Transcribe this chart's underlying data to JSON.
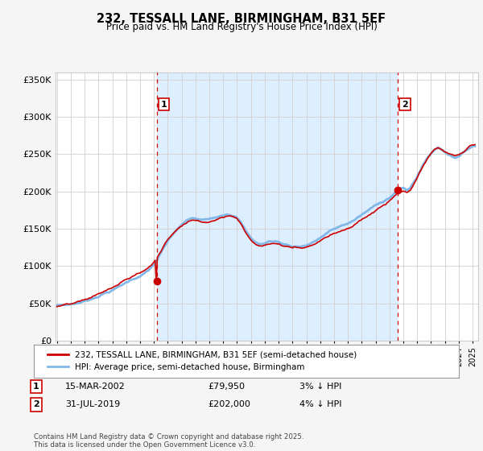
{
  "title": "232, TESSALL LANE, BIRMINGHAM, B31 5EF",
  "subtitle": "Price paid vs. HM Land Registry's House Price Index (HPI)",
  "ytick_values": [
    0,
    50000,
    100000,
    150000,
    200000,
    250000,
    300000,
    350000
  ],
  "ylim": [
    0,
    360000
  ],
  "xlim_start": 1994.9,
  "xlim_end": 2025.4,
  "sale1_x": 2002.2,
  "sale1_y": 79950,
  "sale1_label": "1",
  "sale1_date": "15-MAR-2002",
  "sale1_price": "£79,950",
  "sale1_hpi_diff": "3% ↓ HPI",
  "sale2_x": 2019.58,
  "sale2_y": 202000,
  "sale2_label": "2",
  "sale2_date": "31-JUL-2019",
  "sale2_price": "£202,000",
  "sale2_hpi_diff": "4% ↓ HPI",
  "hpi_color": "#82b8e8",
  "hpi_fill_color": "#ddeeff",
  "price_color": "#cc0000",
  "vline_color": "#cc0000",
  "background_color": "#f5f5f5",
  "plot_bg_color": "#ffffff",
  "legend_label_price": "232, TESSALL LANE, BIRMINGHAM, B31 5EF (semi-detached house)",
  "legend_label_hpi": "HPI: Average price, semi-detached house, Birmingham",
  "footer": "Contains HM Land Registry data © Crown copyright and database right 2025.\nThis data is licensed under the Open Government Licence v3.0."
}
